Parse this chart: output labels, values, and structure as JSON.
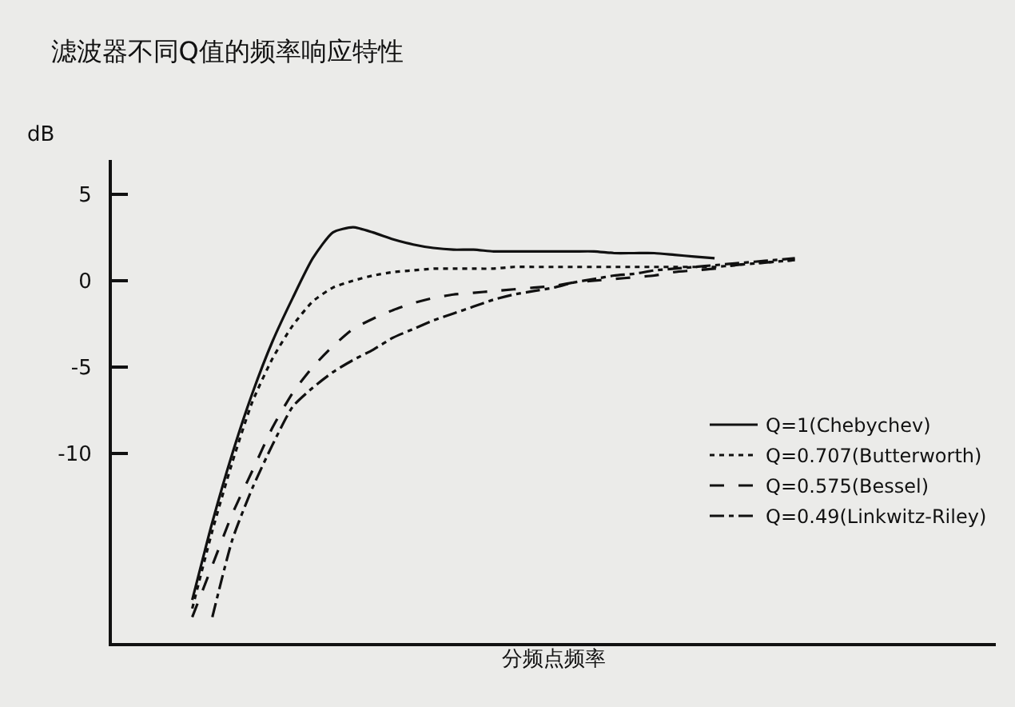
{
  "chart_data": {
    "type": "line",
    "title": "滤波器不同Q值的频率响应特性",
    "xlabel": "分频点频率",
    "ylabel": "dB",
    "categories": [
      null,
      null,
      null,
      null,
      null,
      null,
      null,
      null,
      null,
      null,
      null,
      null,
      null,
      null,
      null,
      null,
      null,
      null,
      null,
      null,
      null,
      null,
      null,
      null,
      null,
      null,
      null,
      null,
      null,
      null,
      null,
      null,
      null,
      null,
      null,
      null,
      null,
      null,
      null,
      null,
      null,
      null,
      null,
      null,
      null
    ],
    "series": [
      {
        "name": "Q=1(Chebychev)",
        "color": "#111111",
        "line_style": "solid",
        "values": [
          null,
          null,
          null,
          null,
          -18.5,
          -14,
          -10,
          -6.5,
          -3.5,
          -1,
          1.3,
          2.8,
          3.1,
          2.8,
          2.4,
          2.1,
          1.9,
          1.8,
          1.8,
          1.7,
          1.7,
          1.7,
          1.7,
          1.7,
          1.7,
          1.6,
          1.6,
          1.6,
          1.5,
          1.4,
          1.3,
          null,
          null,
          null,
          null,
          null,
          null,
          null,
          null,
          null,
          null,
          null,
          null,
          null,
          null
        ]
      },
      {
        "name": "Q=0.707(Butterworth)",
        "color": "#111111",
        "line_style": "dotted",
        "values": [
          null,
          null,
          null,
          null,
          -19,
          -14.5,
          -10.5,
          -7,
          -4.5,
          -2.6,
          -1.2,
          -0.4,
          0,
          0.3,
          0.5,
          0.6,
          0.7,
          0.7,
          0.7,
          0.7,
          0.8,
          0.8,
          0.8,
          0.8,
          0.8,
          0.8,
          0.8,
          0.8,
          0.8,
          0.8,
          0.8,
          0.9,
          1,
          1.1,
          1.2,
          null,
          null,
          null,
          null,
          null,
          null,
          null,
          null,
          null,
          null
        ]
      },
      {
        "name": "Q=0.575(Bessel)",
        "color": "#111111",
        "line_style": "dashed",
        "values": [
          null,
          null,
          null,
          null,
          -19.5,
          -16.5,
          -13.5,
          -11,
          -8.5,
          -6.5,
          -5,
          -3.8,
          -2.8,
          -2.2,
          -1.7,
          -1.3,
          -1,
          -0.8,
          -0.7,
          -0.6,
          -0.5,
          -0.4,
          -0.3,
          -0.1,
          0,
          0.1,
          0.2,
          0.3,
          0.5,
          0.6,
          0.7,
          0.9,
          1,
          1.1,
          1.2,
          null,
          null,
          null,
          null,
          null,
          null,
          null,
          null,
          null,
          null
        ]
      },
      {
        "name": "Q=0.49(Linkwitz-Riley)",
        "color": "#111111",
        "line_style": "dashdot",
        "values": [
          null,
          null,
          null,
          null,
          null,
          -19.5,
          -15,
          -12,
          -9.5,
          -7.3,
          -6.2,
          -5.3,
          -4.6,
          -4,
          -3.3,
          -2.8,
          -2.3,
          -1.9,
          -1.5,
          -1.1,
          -0.8,
          -0.6,
          -0.4,
          -0.1,
          0.1,
          0.3,
          0.4,
          0.6,
          0.7,
          0.8,
          0.9,
          1,
          1.1,
          1.2,
          1.3,
          null,
          null,
          null,
          null,
          null,
          null,
          null,
          null,
          null,
          null
        ]
      }
    ],
    "ylim": [
      -21,
      7
    ],
    "yticks": [
      5,
      0,
      -5,
      -10
    ],
    "tick_labels": "y",
    "grid": false,
    "legend": "right"
  }
}
